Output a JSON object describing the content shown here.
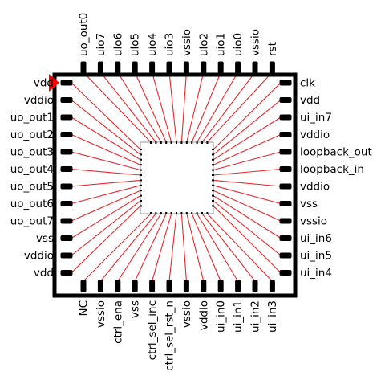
{
  "pins": {
    "top": [
      "uo_out0",
      "uio7",
      "uio6",
      "uio5",
      "uio4",
      "uio3",
      "vssio",
      "uio2",
      "uio1",
      "uio0",
      "vssio",
      "rst"
    ],
    "left": [
      "vdd",
      "vddio",
      "uo_out1",
      "uo_out2",
      "uo_out3",
      "uo_out4",
      "uo_out5",
      "uo_out6",
      "uo_out7",
      "vss",
      "vddio",
      "vdd"
    ],
    "right": [
      "clk",
      "vdd",
      "ui_in7",
      "vddio",
      "loopback_out",
      "loopback_in",
      "vddio",
      "vss",
      "vssio",
      "ui_in6",
      "ui_in5",
      "ui_in4"
    ],
    "bottom": [
      "NC",
      "vssio",
      "ctrl_ena",
      "vss",
      "ctrl_sel_inc",
      "ctrl_sel_rst_n",
      "vssio",
      "vddio",
      "ui_in0",
      "ui_in1",
      "ui_in2",
      "ui_in3"
    ]
  },
  "colors": {
    "package_outline": "#000000",
    "pad": "#000000",
    "bond_wire": "#e8262b",
    "pin1_marker": "#ff0000",
    "die_outline": "#999999"
  }
}
